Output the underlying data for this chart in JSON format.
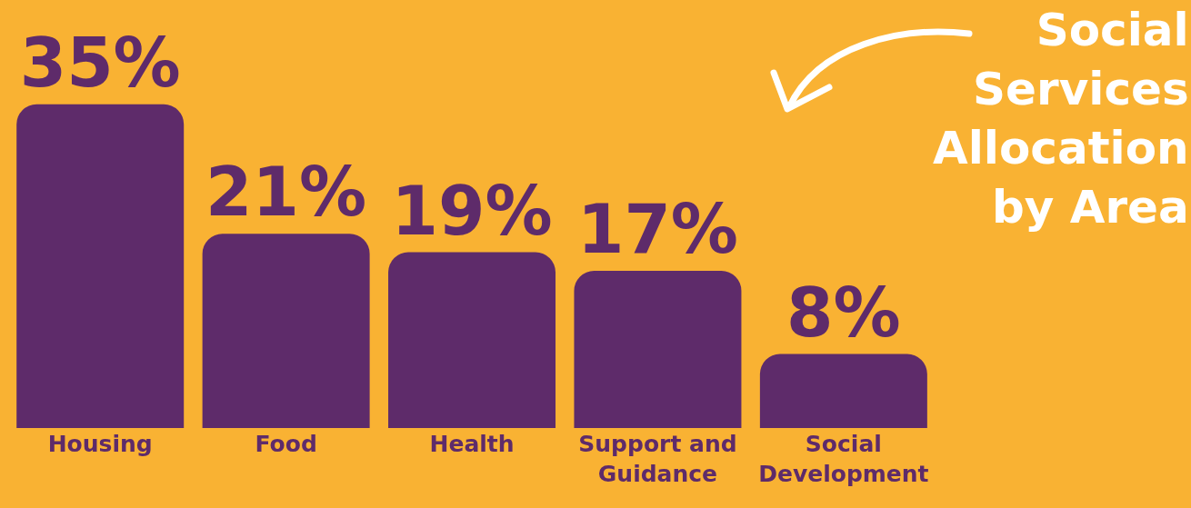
{
  "chart_data": {
    "type": "bar",
    "title": "Social Services Allocation by Area",
    "categories": [
      "Housing",
      "Food",
      "Health",
      "Support and Guidance",
      "Social Development"
    ],
    "values": [
      35,
      21,
      19,
      17,
      8
    ],
    "value_labels": [
      "35%",
      "21%",
      "19%",
      "17%",
      "8%"
    ],
    "color": "#5e2b6a"
  }
}
